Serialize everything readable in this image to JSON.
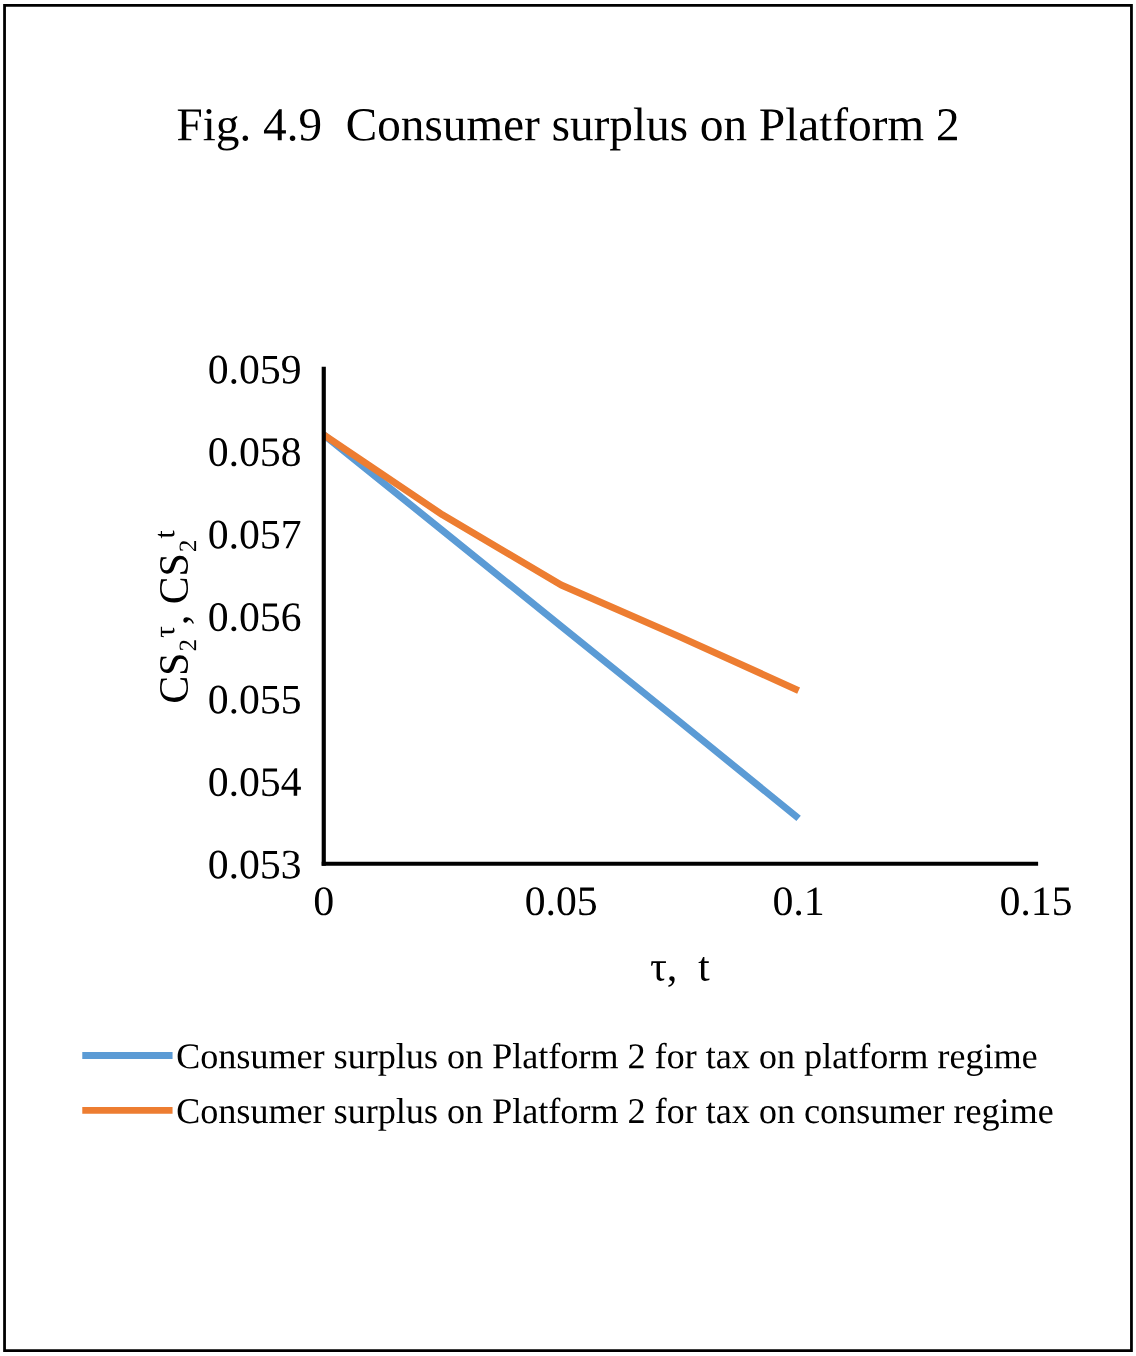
{
  "chart_data": {
    "type": "line",
    "title": "Fig. 4.9  Consumer surplus on Platform 2",
    "xlabel": "τ,  t",
    "ylabel": "CS₂$^{τ}$, CS₂$^{t}$",
    "xlim": [
      0,
      0.15
    ],
    "xticks": [
      0,
      0.05,
      0.1,
      0.15
    ],
    "ylim": [
      0.053,
      0.059
    ],
    "yticks": [
      0.053,
      0.054,
      0.055,
      0.056,
      0.057,
      0.058,
      0.059
    ],
    "grid": false,
    "legend": "bottom",
    "marker": "none",
    "line_style": "solid",
    "series": [
      {
        "name": "Consumer surplus on Platform 2 for tax on platform regime",
        "color": "#5b9bd5",
        "x": [
          0,
          0.025,
          0.05,
          0.075,
          0.1
        ],
        "values": [
          0.0582,
          0.05704,
          0.05588,
          0.05472,
          0.05355
        ]
      },
      {
        "name": "Consumer surplus on Platform 2 for tax on consumer regime",
        "color": "#ed7d31",
        "x": [
          0,
          0.025,
          0.05,
          0.075,
          0.1
        ],
        "values": [
          0.0582,
          0.05723,
          0.05638,
          0.05575,
          0.0551
        ]
      }
    ]
  }
}
